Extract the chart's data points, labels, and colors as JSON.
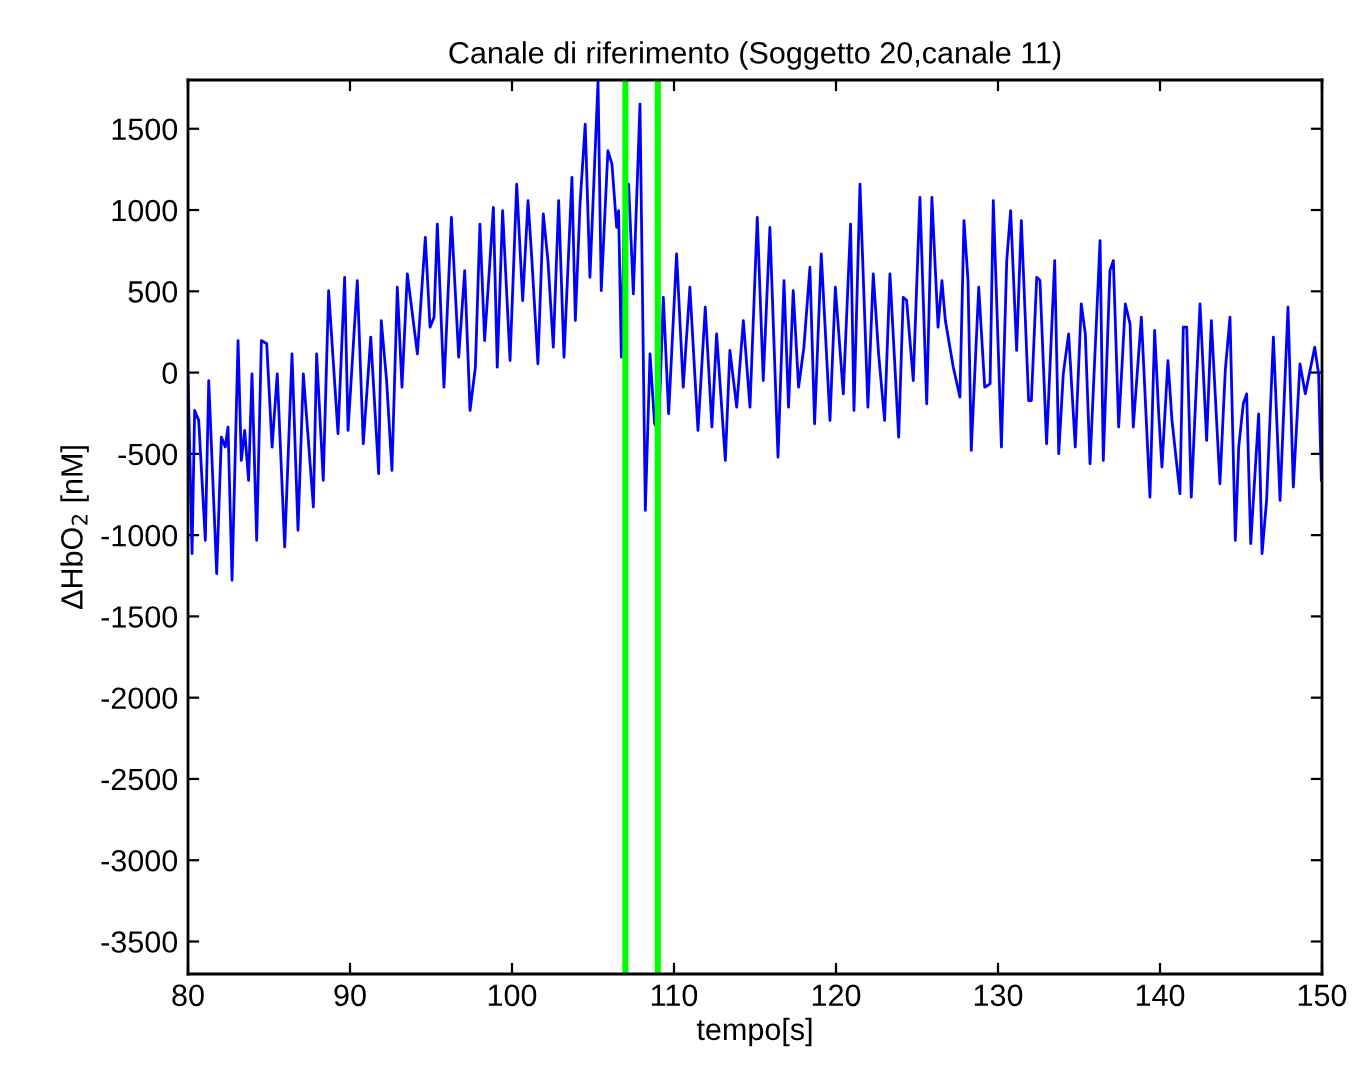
{
  "chart_data": {
    "type": "line",
    "title": "Canale di riferimento (Soggetto 20,canale 11)",
    "xlabel": "tempo[s]",
    "ylabel": "ΔHbO$_{2}$ [nM]",
    "xlim": [
      80,
      150
    ],
    "xticks": [
      80,
      90,
      100,
      110,
      120,
      130,
      140,
      150
    ],
    "ylim": [
      -3700,
      1800
    ],
    "yticks": [
      -3500,
      -3000,
      -2500,
      -2000,
      -1500,
      -1000,
      -500,
      0,
      500,
      1000,
      1500
    ],
    "grid": false,
    "legend": false,
    "marker": "none",
    "line_style": "solid",
    "ref_lines": [
      {
        "axis": "x",
        "value": 107,
        "label": null,
        "color": "#00ff00"
      },
      {
        "axis": "x",
        "value": 109,
        "label": null,
        "color": "#00ff00"
      }
    ],
    "series": [
      {
        "color": "#0000ff",
        "x": [
          80.0,
          80.25,
          80.41,
          80.66,
          81.07,
          81.28,
          81.77,
          82.06,
          82.3,
          82.47,
          82.72,
          83.09,
          83.29,
          83.5,
          83.74,
          83.95,
          84.24,
          84.53,
          84.86,
          85.19,
          85.51,
          85.97,
          86.42,
          86.79,
          87.12,
          87.74,
          87.94,
          88.35,
          88.68,
          89.26,
          89.67,
          89.88,
          90.45,
          90.82,
          91.28,
          91.77,
          91.93,
          92.26,
          92.59,
          92.92,
          93.21,
          93.54,
          94.16,
          94.65,
          94.94,
          95.19,
          95.39,
          95.8,
          96.26,
          96.71,
          97.08,
          97.41,
          97.74,
          98.02,
          98.31,
          98.64,
          98.85,
          99.09,
          99.42,
          99.88,
          100.29,
          100.66,
          100.99,
          101.23,
          101.6,
          101.93,
          102.22,
          102.55,
          102.88,
          103.21,
          103.7,
          103.91,
          104.2,
          104.52,
          104.81,
          105.31,
          105.51,
          105.92,
          106.17,
          106.46,
          106.58,
          106.75,
          106.95,
          107.2,
          107.49,
          107.9,
          108.23,
          108.52,
          108.8,
          109.05,
          109.34,
          109.67,
          110.16,
          110.57,
          110.98,
          111.48,
          111.93,
          112.34,
          112.63,
          113.17,
          113.45,
          113.87,
          114.28,
          114.69,
          115.14,
          115.51,
          115.92,
          116.42,
          116.79,
          117.07,
          117.36,
          117.69,
          118.02,
          118.39,
          118.68,
          119.09,
          119.63,
          119.96,
          120.45,
          120.9,
          121.11,
          121.48,
          121.97,
          122.3,
          122.63,
          123.0,
          123.33,
          123.87,
          124.15,
          124.36,
          124.77,
          125.18,
          125.6,
          125.92,
          126.3,
          126.54,
          126.75,
          127.24,
          127.65,
          127.9,
          128.15,
          128.35,
          128.81,
          129.18,
          129.51,
          129.71,
          130.04,
          130.21,
          130.54,
          130.78,
          131.15,
          131.44,
          131.89,
          132.06,
          132.39,
          132.59,
          133.0,
          133.5,
          133.75,
          134.03,
          134.36,
          134.77,
          135.14,
          135.39,
          135.68,
          136.3,
          136.5,
          136.91,
          137.12,
          137.45,
          137.86,
          138.15,
          138.35,
          138.85,
          139.38,
          139.67,
          139.92,
          140.12,
          140.49,
          140.74,
          141.23,
          141.44,
          141.65,
          141.93,
          142.47,
          142.88,
          143.17,
          143.7,
          144.03,
          144.32,
          144.65,
          144.86,
          145.14,
          145.35,
          145.6,
          146.09,
          146.3,
          146.58,
          147.0,
          147.41,
          147.9,
          148.23,
          148.64,
          148.97,
          149.55,
          149.79,
          149.96
        ],
        "values": [
          -8,
          -1114,
          -233,
          -294,
          -1032,
          -49,
          -1237,
          -397,
          -458,
          -335,
          -1278,
          197,
          -540,
          -356,
          -663,
          -8,
          -1032,
          197,
          177,
          -458,
          -8,
          -1073,
          115,
          -970,
          -8,
          -827,
          115,
          -663,
          504,
          -376,
          586,
          -356,
          566,
          -438,
          218,
          -622,
          320,
          -49,
          -602,
          525,
          -90,
          607,
          115,
          832,
          279,
          341,
          914,
          -90,
          955,
          95,
          627,
          -233,
          33,
          914,
          197,
          689,
          1017,
          33,
          996,
          74,
          1160,
          443,
          1058,
          689,
          54,
          976,
          689,
          156,
          1058,
          95,
          1201,
          320,
          1037,
          1529,
          586,
          1790,
          504,
          1365,
          1283,
          894,
          996,
          95,
          1037,
          1160,
          484,
          1652,
          -848,
          115,
          -315,
          -356,
          463,
          -253,
          730,
          -90,
          525,
          -356,
          402,
          -335,
          238,
          -540,
          136,
          -213,
          320,
          -213,
          955,
          -49,
          894,
          -520,
          566,
          -213,
          504,
          -90,
          156,
          648,
          -315,
          730,
          -294,
          525,
          -131,
          914,
          -233,
          1160,
          -213,
          607,
          115,
          -294,
          607,
          -397,
          463,
          443,
          -49,
          1078,
          -192,
          1078,
          279,
          566,
          320,
          33,
          -151,
          935,
          566,
          -479,
          525,
          -90,
          -69,
          1058,
          74,
          -458,
          689,
          996,
          136,
          935,
          -172,
          -172,
          586,
          566,
          -438,
          689,
          -499,
          -8,
          238,
          -458,
          422,
          238,
          -561,
          812,
          -540,
          627,
          689,
          -335,
          422,
          300,
          -335,
          341,
          -766,
          259,
          -254,
          -581,
          74,
          -294,
          -745,
          279,
          279,
          -766,
          422,
          -417,
          320,
          -684,
          13,
          341,
          -1032,
          -458,
          -192,
          -131,
          -1052,
          -254,
          -1114,
          -786,
          218,
          -786,
          402,
          -704,
          54,
          -131,
          156,
          -8,
          -663
        ]
      }
    ]
  }
}
